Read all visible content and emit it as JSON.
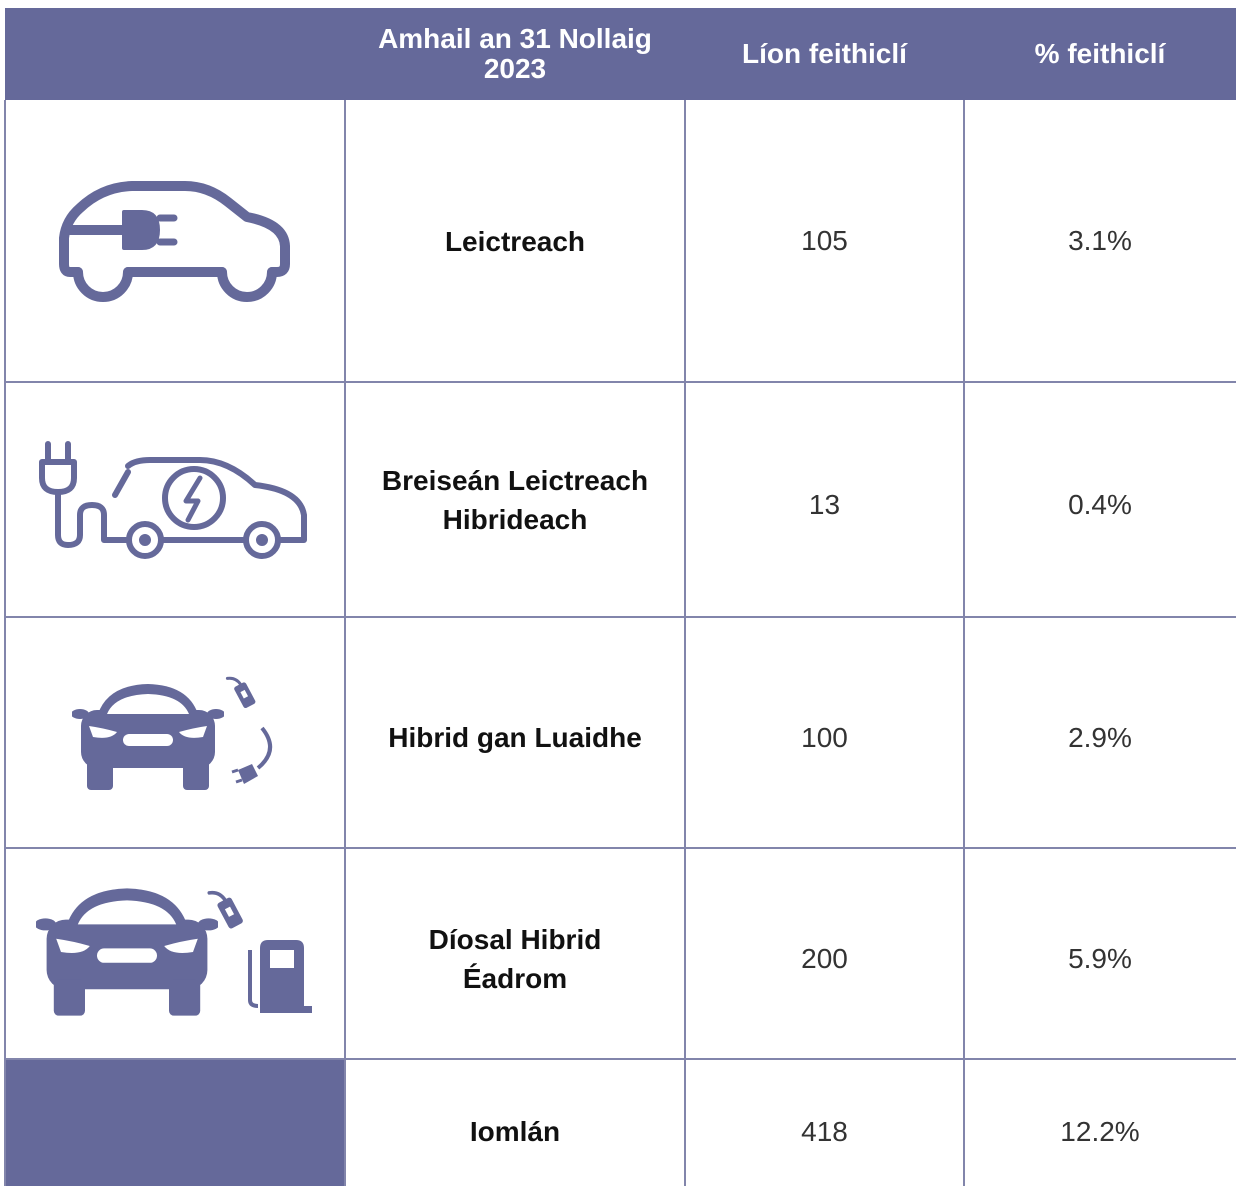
{
  "header": {
    "columns": [
      "Amhail an 31 Nollaig 2023",
      "Líon feithiclí",
      "% feithiclí"
    ]
  },
  "rows": [
    {
      "label": "Leictreach",
      "count": "105",
      "percent": "3.1%"
    },
    {
      "label": "Breiseán Leictreach Hibrideach",
      "count": "13",
      "percent": "0.4%"
    },
    {
      "label": "Hibrid gan Luaidhe",
      "count": "100",
      "percent": "2.9%"
    },
    {
      "label": "Díosal Hibrid Éadrom",
      "count": "200",
      "percent": "5.9%"
    }
  ],
  "total": {
    "label": "Iomlán",
    "count": "418",
    "percent": "12.2%"
  }
}
